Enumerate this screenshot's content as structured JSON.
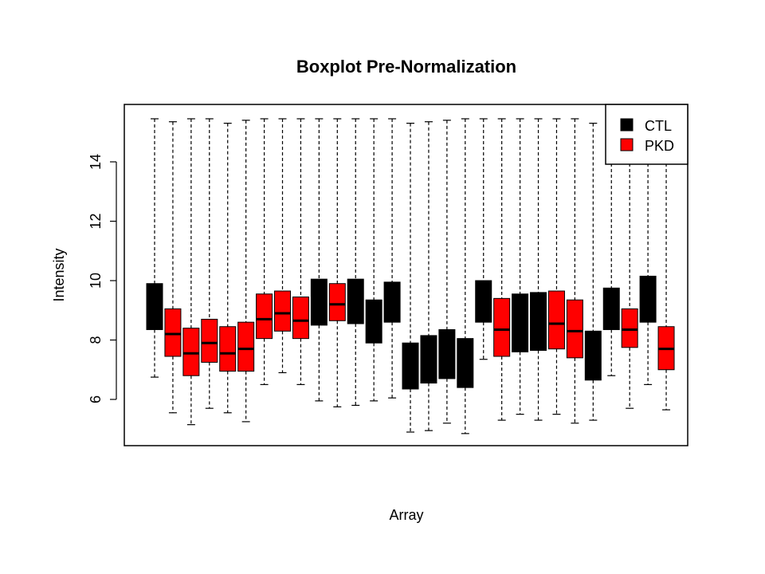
{
  "chart_data": {
    "type": "boxplot",
    "title": "Boxplot Pre-Normalization",
    "xlabel": "Array",
    "ylabel": "Intensity",
    "ylim": [
      4.5,
      15.7
    ],
    "yticks": [
      6,
      8,
      10,
      12,
      14
    ],
    "x_ticks_shown": false,
    "legend": {
      "placement": "top-right",
      "entries": [
        {
          "label": "CTL",
          "color": "#000000"
        },
        {
          "label": "PKD",
          "color": "#ff0000"
        }
      ]
    },
    "colors": {
      "CTL": "#000000",
      "PKD": "#ff0000"
    },
    "boxes": [
      {
        "group": "CTL",
        "min": 6.75,
        "q1": 8.35,
        "median": 8.9,
        "q3": 9.9,
        "max": 15.45
      },
      {
        "group": "PKD",
        "min": 5.55,
        "q1": 7.45,
        "median": 8.2,
        "q3": 9.05,
        "max": 15.35
      },
      {
        "group": "PKD",
        "min": 5.15,
        "q1": 6.8,
        "median": 7.55,
        "q3": 8.4,
        "max": 15.45
      },
      {
        "group": "PKD",
        "min": 5.7,
        "q1": 7.25,
        "median": 7.9,
        "q3": 8.7,
        "max": 15.45
      },
      {
        "group": "PKD",
        "min": 5.55,
        "q1": 6.95,
        "median": 7.55,
        "q3": 8.45,
        "max": 15.3
      },
      {
        "group": "PKD",
        "min": 5.25,
        "q1": 6.95,
        "median": 7.7,
        "q3": 8.6,
        "max": 15.4
      },
      {
        "group": "PKD",
        "min": 6.5,
        "q1": 8.05,
        "median": 8.7,
        "q3": 9.55,
        "max": 15.45
      },
      {
        "group": "PKD",
        "min": 6.9,
        "q1": 8.3,
        "median": 8.9,
        "q3": 9.65,
        "max": 15.45
      },
      {
        "group": "PKD",
        "min": 6.5,
        "q1": 8.05,
        "median": 8.65,
        "q3": 9.45,
        "max": 15.45
      },
      {
        "group": "CTL",
        "min": 5.95,
        "q1": 8.5,
        "median": 9.2,
        "q3": 10.05,
        "max": 15.45
      },
      {
        "group": "PKD",
        "min": 5.75,
        "q1": 8.65,
        "median": 9.2,
        "q3": 9.9,
        "max": 15.45
      },
      {
        "group": "CTL",
        "min": 5.8,
        "q1": 8.55,
        "median": 9.3,
        "q3": 10.05,
        "max": 15.45
      },
      {
        "group": "CTL",
        "min": 5.95,
        "q1": 7.9,
        "median": 8.6,
        "q3": 9.35,
        "max": 15.45
      },
      {
        "group": "CTL",
        "min": 6.05,
        "q1": 8.6,
        "median": 9.3,
        "q3": 9.95,
        "max": 15.45
      },
      {
        "group": "CTL",
        "min": 4.9,
        "q1": 6.35,
        "median": 7.05,
        "q3": 7.9,
        "max": 15.3
      },
      {
        "group": "CTL",
        "min": 4.95,
        "q1": 6.55,
        "median": 7.25,
        "q3": 8.15,
        "max": 15.35
      },
      {
        "group": "CTL",
        "min": 5.2,
        "q1": 6.7,
        "median": 7.5,
        "q3": 8.35,
        "max": 15.4
      },
      {
        "group": "CTL",
        "min": 4.85,
        "q1": 6.4,
        "median": 7.2,
        "q3": 8.05,
        "max": 15.45
      },
      {
        "group": "CTL",
        "min": 7.35,
        "q1": 8.6,
        "median": 9.3,
        "q3": 10.0,
        "max": 15.45
      },
      {
        "group": "PKD",
        "min": 5.3,
        "q1": 7.45,
        "median": 8.35,
        "q3": 9.4,
        "max": 15.45
      },
      {
        "group": "CTL",
        "min": 5.5,
        "q1": 7.6,
        "median": 8.5,
        "q3": 9.55,
        "max": 15.45
      },
      {
        "group": "CTL",
        "min": 5.3,
        "q1": 7.65,
        "median": 8.55,
        "q3": 9.6,
        "max": 15.45
      },
      {
        "group": "PKD",
        "min": 5.5,
        "q1": 7.7,
        "median": 8.55,
        "q3": 9.65,
        "max": 15.45
      },
      {
        "group": "PKD",
        "min": 5.2,
        "q1": 7.4,
        "median": 8.3,
        "q3": 9.35,
        "max": 15.45
      },
      {
        "group": "CTL",
        "min": 5.3,
        "q1": 6.65,
        "median": 7.5,
        "q3": 8.3,
        "max": 15.3
      },
      {
        "group": "CTL",
        "min": 6.8,
        "q1": 8.35,
        "median": 9.05,
        "q3": 9.75,
        "max": 15.45
      },
      {
        "group": "PKD",
        "min": 5.7,
        "q1": 7.75,
        "median": 8.35,
        "q3": 9.05,
        "max": 15.45
      },
      {
        "group": "CTL",
        "min": 6.5,
        "q1": 8.6,
        "median": 9.4,
        "q3": 10.15,
        "max": 15.45
      },
      {
        "group": "PKD",
        "min": 5.65,
        "q1": 7.0,
        "median": 7.7,
        "q3": 8.45,
        "max": 15.45
      }
    ]
  }
}
